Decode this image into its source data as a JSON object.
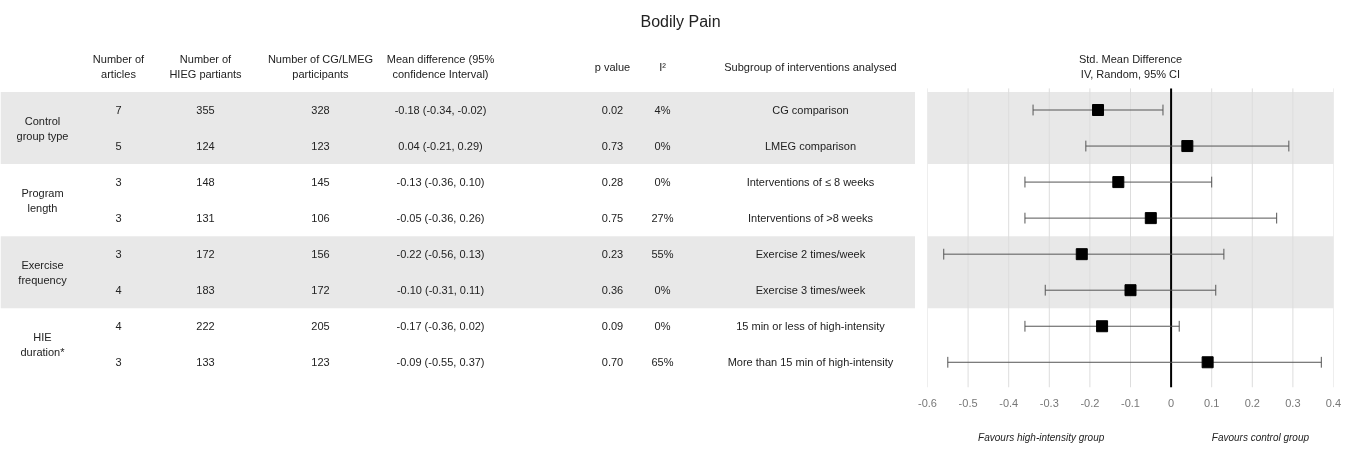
{
  "chart_data": {
    "type": "scatter",
    "orientation": "horizontal",
    "title": "Bodily Pain",
    "xlabel": "Std. Mean Difference\nIV, Random, 95% CI",
    "categories": [
      "CG comparison",
      "LMEG comparison",
      "Interventions of ≤ 8 weeks",
      "Interventions of >8 weeks",
      "Exercise 2 times/week",
      "Exercise 3 times/week",
      "15 min or less of high-intensity",
      "More than 15 min of high-intensity"
    ],
    "values": [
      -0.18,
      0.04,
      -0.13,
      -0.05,
      -0.22,
      -0.1,
      -0.17,
      0.09
    ],
    "errors": [
      [
        -0.34,
        -0.02
      ],
      [
        -0.21,
        0.29
      ],
      [
        -0.36,
        0.1
      ],
      [
        -0.36,
        0.26
      ],
      [
        -0.56,
        0.13
      ],
      [
        -0.31,
        0.11
      ],
      [
        -0.36,
        0.02
      ],
      [
        -0.55,
        0.37
      ]
    ],
    "value_labels": [
      "-0.18 (-0.34, -0.02)",
      "0.04 (-0.21, 0.29)",
      "-0.13 (-0.36, 0.10)",
      "-0.05 (-0.36, 0.26)",
      "-0.22 (-0.56, 0.13)",
      "-0.10 (-0.31, 0.11)",
      "-0.17 (-0.36, 0.02)",
      "-0.09 (-0.55, 0.37)"
    ],
    "color": "#000000",
    "marker": "square",
    "xlim": [
      -0.6,
      0.4
    ],
    "xticks": [
      -0.6,
      -0.5,
      -0.4,
      -0.3,
      -0.2,
      -0.1,
      0,
      0.1,
      0.2,
      0.3,
      0.4
    ],
    "grid": "x",
    "ref_lines": [
      {
        "axis": "x",
        "value": 0,
        "color": "#000000"
      }
    ],
    "bands": [
      {
        "axis": "y",
        "from": "CG comparison",
        "to": "LMEG comparison",
        "color": "#e8e8e8"
      },
      {
        "axis": "y",
        "from": "Exercise 2 times/week",
        "to": "Exercise 3 times/week",
        "color": "#e8e8e8"
      }
    ],
    "annotations": [
      "Number of\narticles",
      "Number of\nHIEG partiants",
      "Number of CG/LMEG\nparticipants",
      "Mean difference (95%\nconfidence Interval)",
      "p value",
      "I²",
      "Subgroup of interventions analysed",
      "Control\ngroup type",
      "Program\nlength",
      "Exercise\nfrequency",
      "HIE\nduration*",
      "7",
      "355",
      "328",
      "0.02",
      "4%",
      "5",
      "124",
      "123",
      "0.73",
      "0%",
      "3",
      "148",
      "145",
      "0.28",
      "0%",
      "3",
      "131",
      "106",
      "0.75",
      "27%",
      "3",
      "172",
      "156",
      "0.23",
      "55%",
      "4",
      "183",
      "172",
      "0.36",
      "0%",
      "4",
      "222",
      "205",
      "0.09",
      "0%",
      "3",
      "133",
      "123",
      "0.70",
      "65%",
      "Favours high-intensity group",
      "Favours control group"
    ]
  }
}
